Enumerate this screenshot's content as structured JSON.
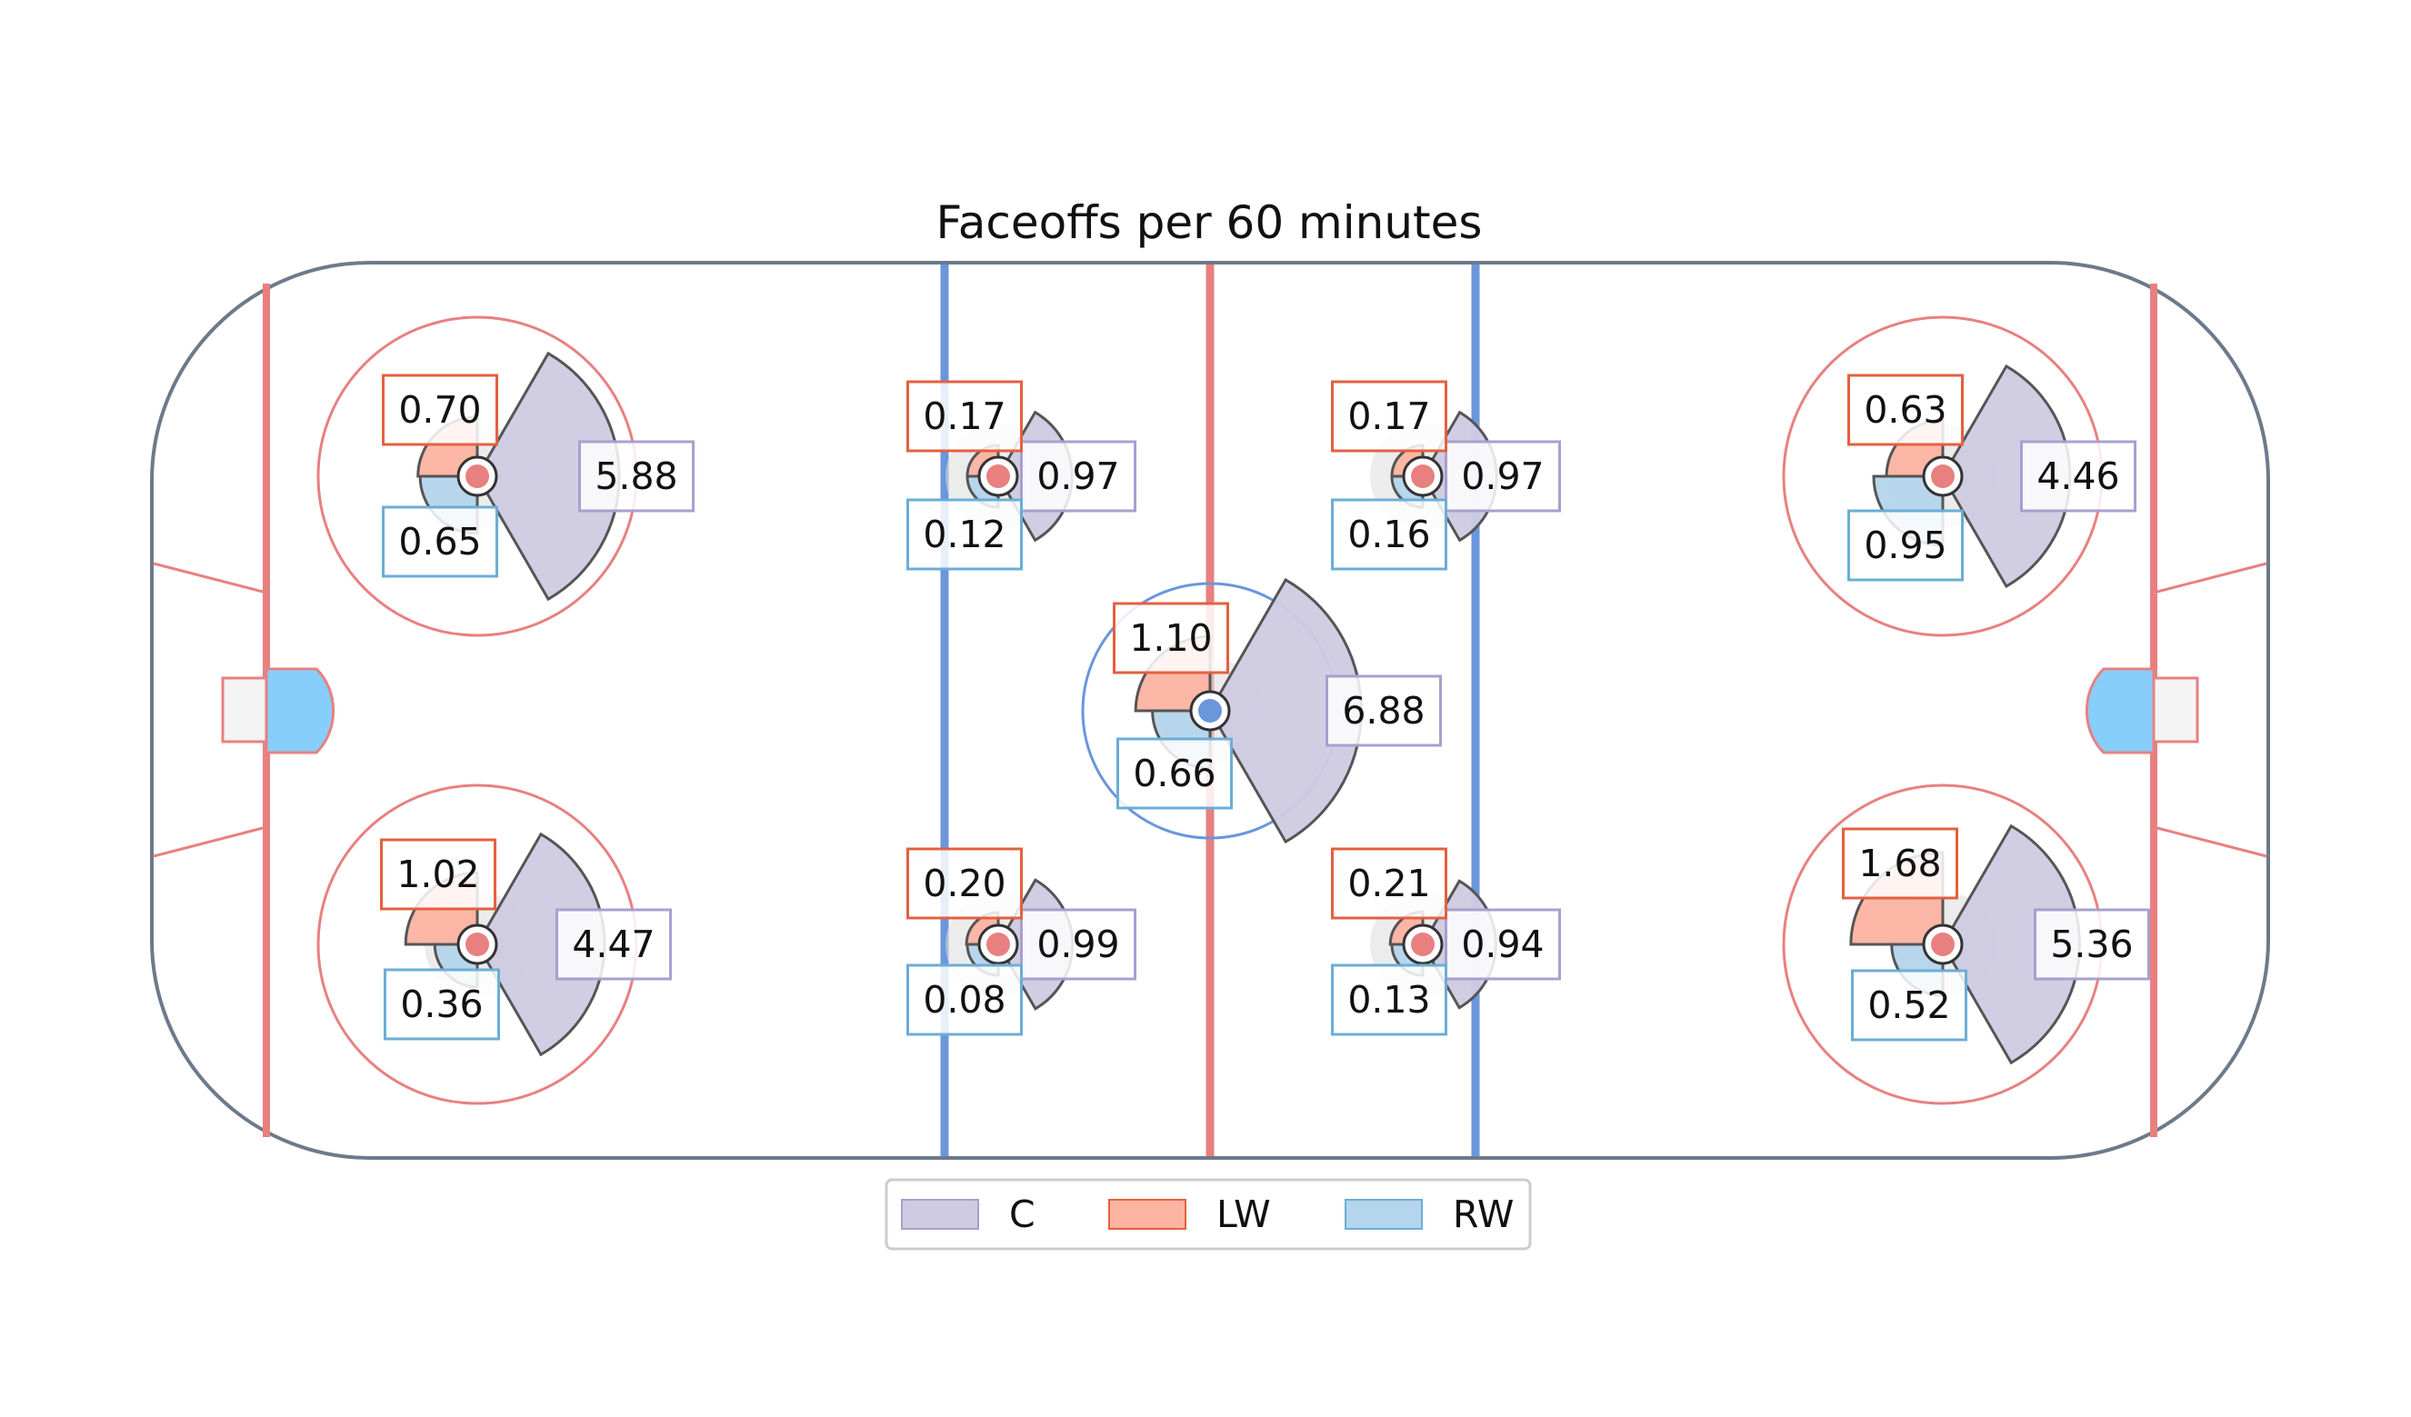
{
  "chart_data": {
    "type": "other",
    "title": "Faceoffs per 60 minutes",
    "positions": [
      "C",
      "LW",
      "RW"
    ],
    "colors": {
      "C": "#cfcbe3",
      "C_edge": "#a99fcf",
      "LW": "#fcb3a1",
      "LW_edge": "#e4603f",
      "RW": "#b4d5ec",
      "RW_edge": "#6aaed6",
      "red_line": "#e88080",
      "blue_line": "#6a96dc",
      "boards": "#6c7a8a",
      "crease": "#87cefa"
    },
    "faceoff_spots": [
      {
        "spot": "defensive-zone-top",
        "C": 5.88,
        "LW": 0.7,
        "RW": 0.65
      },
      {
        "spot": "defensive-zone-bottom",
        "C": 4.47,
        "LW": 1.02,
        "RW": 0.36
      },
      {
        "spot": "neutral-left-top",
        "C": 0.97,
        "LW": 0.17,
        "RW": 0.12
      },
      {
        "spot": "neutral-left-bottom",
        "C": 0.99,
        "LW": 0.2,
        "RW": 0.08
      },
      {
        "spot": "center-ice",
        "C": 6.88,
        "LW": 1.1,
        "RW": 0.66
      },
      {
        "spot": "neutral-right-top",
        "C": 0.97,
        "LW": 0.17,
        "RW": 0.16
      },
      {
        "spot": "neutral-right-bottom",
        "C": 0.94,
        "LW": 0.21,
        "RW": 0.13
      },
      {
        "spot": "offensive-zone-top",
        "C": 4.46,
        "LW": 0.63,
        "RW": 0.95
      },
      {
        "spot": "offensive-zone-bottom",
        "C": 5.36,
        "LW": 1.68,
        "RW": 0.52
      }
    ],
    "value_labels": [
      {
        "C": "5.88",
        "LW": "0.70",
        "RW": "0.65"
      },
      {
        "C": "4.47",
        "LW": "1.02",
        "RW": "0.36"
      },
      {
        "C": "0.97",
        "LW": "0.17",
        "RW": "0.12"
      },
      {
        "C": "0.99",
        "LW": "0.20",
        "RW": "0.08"
      },
      {
        "C": "6.88",
        "LW": "1.10",
        "RW": "0.66"
      },
      {
        "C": "0.97",
        "LW": "0.17",
        "RW": "0.16"
      },
      {
        "C": "0.94",
        "LW": "0.21",
        "RW": "0.13"
      },
      {
        "C": "4.46",
        "LW": "0.63",
        "RW": "0.95"
      },
      {
        "C": "5.36",
        "LW": "1.68",
        "RW": "0.52"
      }
    ],
    "legend": {
      "placement": "bottom-center",
      "entries": [
        "C",
        "LW",
        "RW"
      ]
    }
  }
}
